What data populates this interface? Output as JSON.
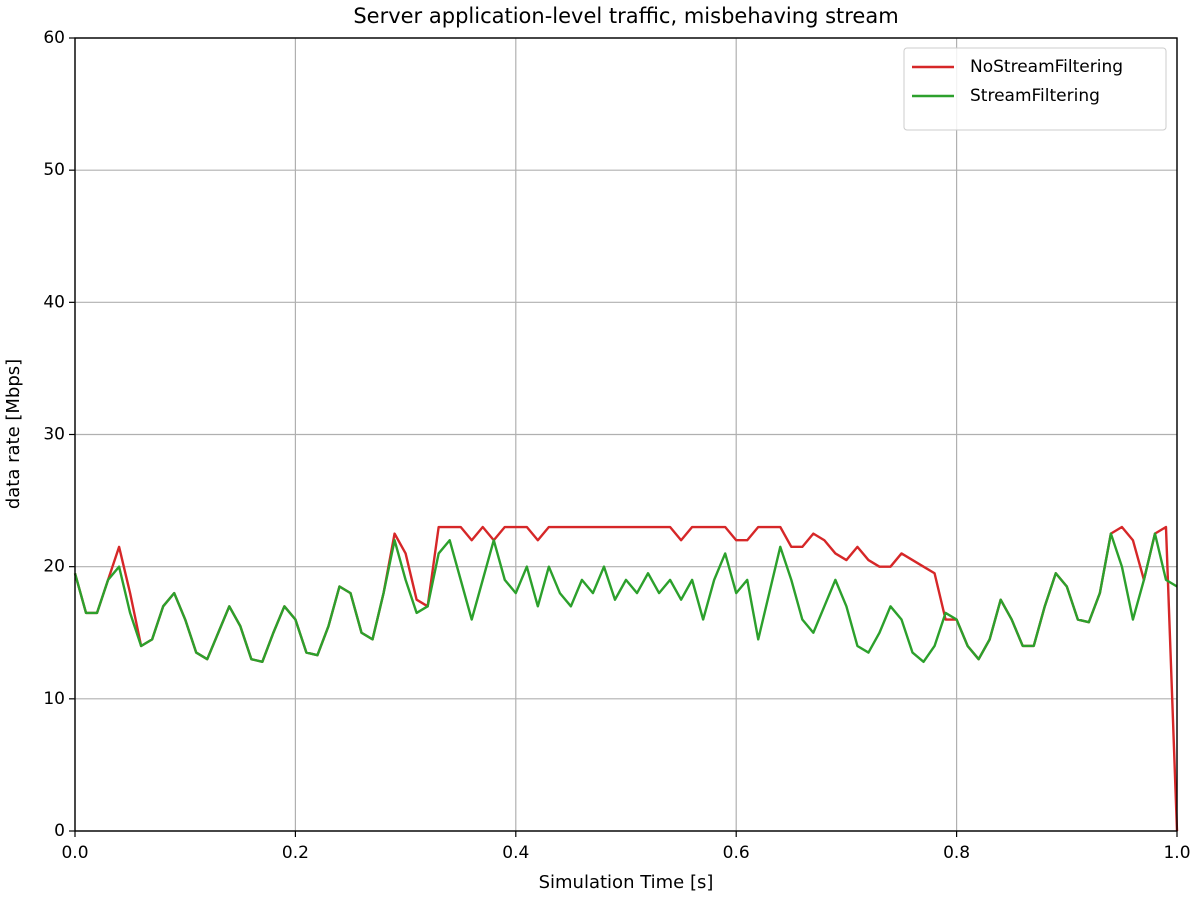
{
  "chart_data": {
    "type": "line",
    "title": "Server application-level traffic, misbehaving stream",
    "xlabel": "Simulation Time [s]",
    "ylabel": "data rate [Mbps]",
    "x": [
      0,
      0.01,
      0.02,
      0.03,
      0.04,
      0.05,
      0.06,
      0.07,
      0.08,
      0.09,
      0.1,
      0.11,
      0.12,
      0.13,
      0.14,
      0.15,
      0.16,
      0.17,
      0.18,
      0.19,
      0.2,
      0.21,
      0.22,
      0.23,
      0.24,
      0.25,
      0.26,
      0.27,
      0.28,
      0.29,
      0.3,
      0.31,
      0.32,
      0.33,
      0.34,
      0.35,
      0.36,
      0.37,
      0.38,
      0.39,
      0.4,
      0.41,
      0.42,
      0.43,
      0.44,
      0.45,
      0.46,
      0.47,
      0.48,
      0.49,
      0.5,
      0.51,
      0.52,
      0.53,
      0.54,
      0.55,
      0.56,
      0.57,
      0.58,
      0.59,
      0.6,
      0.61,
      0.62,
      0.63,
      0.64,
      0.65,
      0.66,
      0.67,
      0.68,
      0.69,
      0.7,
      0.71,
      0.72,
      0.73,
      0.74,
      0.75,
      0.76,
      0.77,
      0.78,
      0.79,
      0.8,
      0.81,
      0.82,
      0.83,
      0.84,
      0.85,
      0.86,
      0.87,
      0.88,
      0.89,
      0.9,
      0.91,
      0.92,
      0.93,
      0.94,
      0.95,
      0.96,
      0.97,
      0.98,
      0.99,
      1
    ],
    "series": [
      {
        "name": "NoStreamFiltering",
        "color": "#d62728",
        "values": [
          19.5,
          16.5,
          16.5,
          19,
          21.5,
          18,
          14,
          14.5,
          17,
          18,
          16,
          13.5,
          13,
          15,
          17,
          15.5,
          13,
          12.8,
          15,
          17,
          16,
          13.5,
          13.3,
          15.5,
          18.5,
          18,
          15,
          14.5,
          18,
          22.5,
          21,
          17.5,
          17,
          23,
          23,
          23,
          22,
          23,
          22,
          23,
          23,
          23,
          22,
          23,
          23,
          23,
          23,
          23,
          23,
          23,
          23,
          23,
          23,
          23,
          23,
          22,
          23,
          23,
          23,
          23,
          22,
          22,
          23,
          23,
          23,
          21.5,
          21.5,
          22.5,
          22,
          21,
          20.5,
          21.5,
          20.5,
          20,
          20,
          21,
          20.5,
          20,
          19.5,
          16,
          16,
          14,
          13,
          14.5,
          17.5,
          16,
          14,
          14,
          17,
          19.5,
          18.5,
          16,
          15.8,
          18,
          22.5,
          23,
          22,
          19,
          22.5,
          23,
          0
        ]
      },
      {
        "name": "StreamFiltering",
        "color": "#2ca02c",
        "values": [
          19.5,
          16.5,
          16.5,
          19,
          20,
          16.5,
          14,
          14.5,
          17,
          18,
          16,
          13.5,
          13,
          15,
          17,
          15.5,
          13,
          12.8,
          15,
          17,
          16,
          13.5,
          13.3,
          15.5,
          18.5,
          18,
          15,
          14.5,
          18,
          22,
          19,
          16.5,
          17,
          21,
          22,
          19,
          16,
          19,
          22,
          19,
          18,
          20,
          17,
          20,
          18,
          17,
          19,
          18,
          20,
          17.5,
          19,
          18,
          19.5,
          18,
          19,
          17.5,
          19,
          16,
          19,
          21,
          18,
          19,
          14.5,
          18,
          21.5,
          19,
          16,
          15,
          17,
          19,
          17,
          14,
          13.5,
          15,
          17,
          16,
          13.5,
          12.8,
          14,
          16.5,
          16,
          14,
          13,
          14.5,
          17.5,
          16,
          14,
          14,
          17,
          19.5,
          18.5,
          16,
          15.8,
          18,
          22.5,
          20,
          16,
          19,
          22.5,
          19,
          18.5
        ]
      }
    ],
    "xlim": [
      0,
      1
    ],
    "xticks": [
      {
        "value": 0,
        "label": "0.0"
      },
      0.2,
      0.4,
      0.6,
      0.8,
      {
        "value": 1,
        "label": "1.0"
      }
    ],
    "ylim": [
      0,
      60
    ],
    "yticks": [
      0,
      10,
      20,
      30,
      40,
      50,
      60
    ],
    "grid": true,
    "legend": "upper right"
  }
}
